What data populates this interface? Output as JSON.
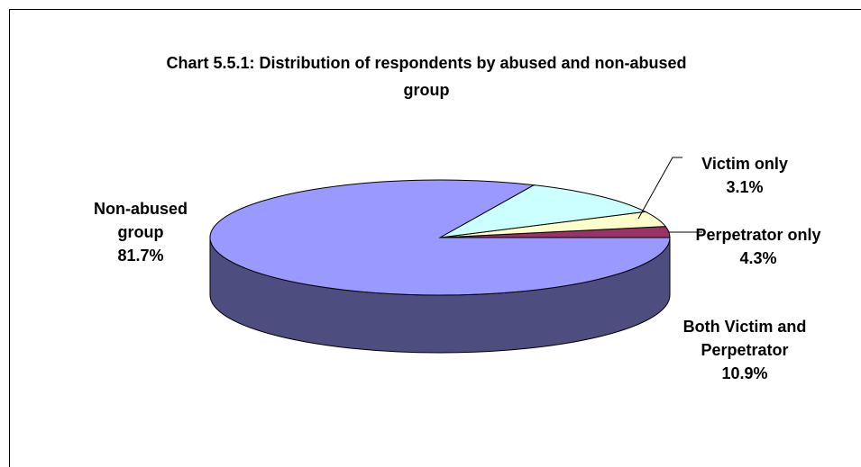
{
  "chart_data": {
    "type": "pie",
    "title_lines": [
      "Chart 5.5.1: Distribution of respondents by abused and non-abused",
      "group"
    ],
    "three_d": true,
    "slices": [
      {
        "label_lines": [
          "Victim only"
        ],
        "value": 3.1,
        "value_label": "3.1%",
        "color": "#993366",
        "side_color": "#4d1a33"
      },
      {
        "label_lines": [
          "Perpetrator only"
        ],
        "value": 4.3,
        "value_label": "4.3%",
        "color": "#ffffcc",
        "side_color": "#808066"
      },
      {
        "label_lines": [
          "Both Victim and",
          "Perpetrator"
        ],
        "value": 10.9,
        "value_label": "10.9%",
        "color": "#ccffff",
        "side_color": "#668080"
      },
      {
        "label_lines": [
          "Non-abused",
          "group"
        ],
        "value": 81.7,
        "value_label": "81.7%",
        "color": "#9999ff",
        "side_color": "#4d4d80"
      }
    ]
  }
}
